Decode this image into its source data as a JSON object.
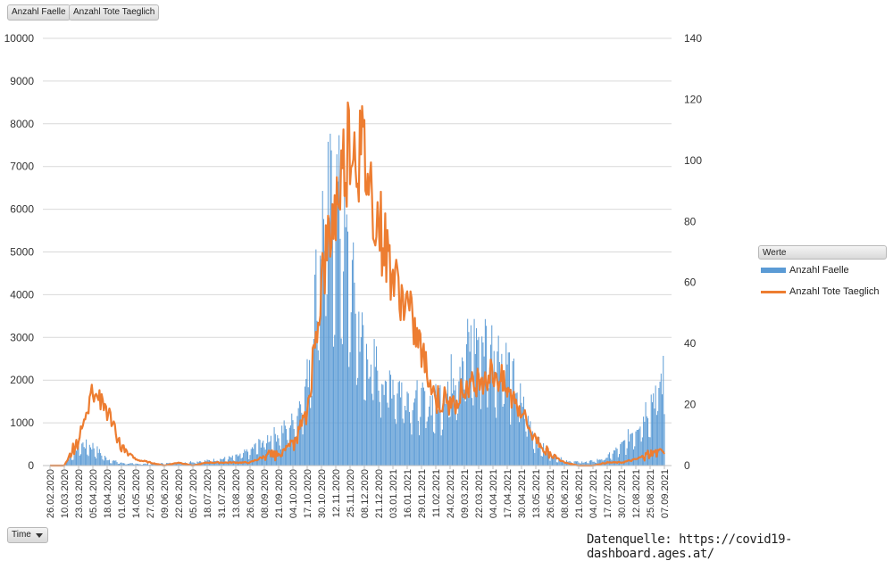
{
  "buttons": {
    "faelle": "Anzahl Faelle",
    "tote": "Anzahl Tote Taeglich",
    "time": "Time"
  },
  "legend": {
    "header": "Werte",
    "faelle": "Anzahl Faelle",
    "tote": "Anzahl Tote Taeglich"
  },
  "source": "Datenquelle: https://covid19-dashboard.ages.at/",
  "colors": {
    "bars": "#5b9bd5",
    "line": "#ed7d31",
    "grid": "#d9d9d9"
  },
  "chart_data": {
    "type": "bar+line",
    "title": "",
    "xlabel": "Time",
    "ylabel_left": "",
    "ylabel_right": "",
    "ylim_left": [
      0,
      10000
    ],
    "yticks_left": [
      0,
      1000,
      2000,
      3000,
      4000,
      5000,
      6000,
      7000,
      8000,
      9000,
      10000
    ],
    "ylim_right": [
      0,
      140
    ],
    "yticks_right": [
      0,
      20,
      40,
      60,
      80,
      100,
      120,
      140
    ],
    "categories": [
      "26.02.2020",
      "10.03.2020",
      "23.03.2020",
      "05.04.2020",
      "18.04.2020",
      "01.05.2020",
      "14.05.2020",
      "27.05.2020",
      "09.06.2020",
      "22.06.2020",
      "05.07.2020",
      "18.07.2020",
      "31.07.2020",
      "13.08.2020",
      "26.08.2020",
      "08.09.2020",
      "21.09.2020",
      "04.10.2020",
      "17.10.2020",
      "30.10.2020",
      "12.11.2020",
      "25.11.2020",
      "08.12.2020",
      "21.12.2020",
      "03.01.2021",
      "16.01.2021",
      "29.01.2021",
      "11.02.2021",
      "24.02.2021",
      "09.03.2021",
      "22.03.2021",
      "04.04.2021",
      "17.04.2021",
      "30.04.2021",
      "13.05.2021",
      "26.05.2021",
      "08.06.2021",
      "21.06.2021",
      "04.07.2021",
      "17.07.2021",
      "30.07.2021",
      "12.08.2021",
      "25.08.2021",
      "07.09.2021"
    ],
    "series": [
      {
        "name": "Anzahl Faelle",
        "axis": "left",
        "kind": "bar",
        "values": [
          0,
          20,
          500,
          450,
          150,
          60,
          40,
          40,
          50,
          60,
          90,
          110,
          150,
          200,
          350,
          600,
          750,
          1000,
          2000,
          5500,
          6500,
          4500,
          2700,
          2200,
          2000,
          1700,
          1500,
          1500,
          2000,
          2700,
          3000,
          2800,
          2400,
          1500,
          600,
          250,
          120,
          80,
          100,
          200,
          450,
          900,
          1500,
          2100
        ]
      },
      {
        "name": "Anzahl Tote Taeglich",
        "axis": "right",
        "kind": "line",
        "values": [
          0,
          0,
          8,
          26,
          18,
          6,
          2,
          1,
          0,
          1,
          0,
          1,
          1,
          1,
          1,
          3,
          4,
          7,
          17,
          60,
          85,
          110,
          100,
          80,
          62,
          52,
          38,
          22,
          20,
          25,
          28,
          31,
          25,
          18,
          8,
          4,
          1,
          0,
          0,
          1,
          1,
          2,
          4,
          5
        ]
      }
    ]
  }
}
